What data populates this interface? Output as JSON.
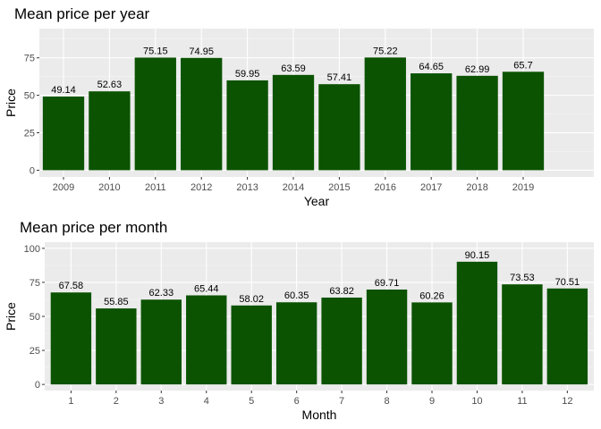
{
  "chart_data": [
    {
      "type": "bar",
      "title": "Mean price per year",
      "xlabel": "Year",
      "ylabel": "Price",
      "categories": [
        "2009",
        "2010",
        "2011",
        "2012",
        "2013",
        "2014",
        "2015",
        "2016",
        "2017",
        "2018",
        "2019"
      ],
      "values": [
        49.14,
        52.63,
        75.15,
        74.95,
        59.95,
        63.59,
        57.41,
        75.22,
        64.65,
        62.99,
        65.7
      ],
      "data_labels": [
        "49.14",
        "52.63",
        "75.15",
        "74.95",
        "59.95",
        "63.59",
        "57.41",
        "75.22",
        "64.65",
        "62.99",
        "65.7"
      ],
      "yticks": [
        0,
        25,
        50,
        75
      ],
      "ylim": [
        -4.5,
        94.5
      ],
      "grid": true,
      "bar_color": "#0b5300",
      "panel_color": "#ebebeb"
    },
    {
      "type": "bar",
      "title": "Mean price per month",
      "xlabel": "Month",
      "ylabel": "Price",
      "categories": [
        "1",
        "2",
        "3",
        "4",
        "5",
        "6",
        "7",
        "8",
        "9",
        "10",
        "11",
        "12"
      ],
      "values": [
        67.58,
        55.85,
        62.33,
        65.44,
        58.02,
        60.35,
        63.82,
        69.71,
        60.26,
        90.15,
        73.53,
        70.51
      ],
      "data_labels": [
        "67.58",
        "55.85",
        "62.33",
        "65.44",
        "58.02",
        "60.35",
        "63.82",
        "69.71",
        "60.26",
        "90.15",
        "73.53",
        "70.51"
      ],
      "yticks": [
        0,
        25,
        50,
        75,
        100
      ],
      "ylim": [
        -4.5,
        104.5
      ],
      "grid": true,
      "bar_color": "#0b5300",
      "panel_color": "#ebebeb"
    }
  ]
}
